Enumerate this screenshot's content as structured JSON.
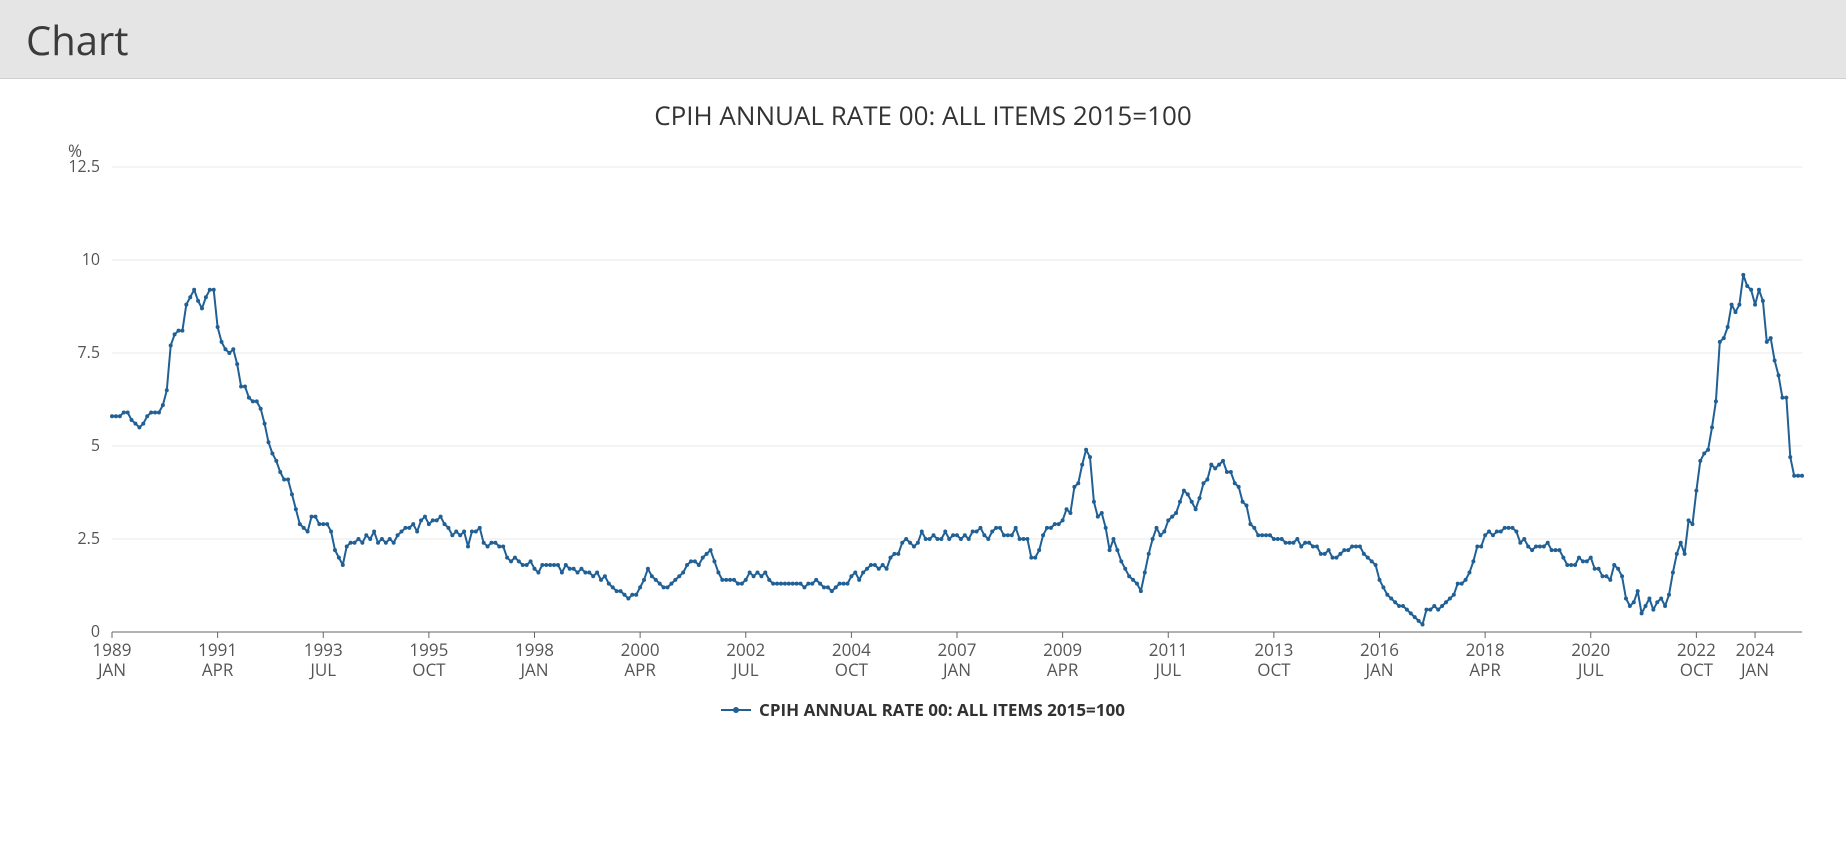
{
  "header": {
    "title": "Chart"
  },
  "chart": {
    "type": "line",
    "title": "CPIH ANNUAL RATE 00: ALL ITEMS 2015=100",
    "unit": "%",
    "series_name": "CPIH ANNUAL RATE 00: ALL ITEMS 2015=100",
    "line_color": "#206095",
    "line_width": 2,
    "marker_radius": 2,
    "background_color": "#ffffff",
    "grid_color": "#e8e8e8",
    "axis_color": "#666666",
    "label_color": "#555555",
    "title_fontsize": 26,
    "axis_fontsize": 17,
    "ylim": [
      0,
      12.5
    ],
    "yticks": [
      0,
      2.5,
      5,
      7.5,
      10,
      12.5
    ],
    "xticks": [
      {
        "t": 0,
        "year": "1989",
        "month": "JAN"
      },
      {
        "t": 27,
        "year": "1991",
        "month": "APR"
      },
      {
        "t": 54,
        "year": "1993",
        "month": "JUL"
      },
      {
        "t": 81,
        "year": "1995",
        "month": "OCT"
      },
      {
        "t": 108,
        "year": "1998",
        "month": "JAN"
      },
      {
        "t": 135,
        "year": "2000",
        "month": "APR"
      },
      {
        "t": 162,
        "year": "2002",
        "month": "JUL"
      },
      {
        "t": 189,
        "year": "2004",
        "month": "OCT"
      },
      {
        "t": 216,
        "year": "2007",
        "month": "JAN"
      },
      {
        "t": 243,
        "year": "2009",
        "month": "APR"
      },
      {
        "t": 270,
        "year": "2011",
        "month": "JUL"
      },
      {
        "t": 297,
        "year": "2013",
        "month": "OCT"
      },
      {
        "t": 324,
        "year": "2016",
        "month": "JAN"
      },
      {
        "t": 351,
        "year": "2018",
        "month": "APR"
      },
      {
        "t": 378,
        "year": "2020",
        "month": "JUL"
      },
      {
        "t": 405,
        "year": "2022",
        "month": "OCT"
      },
      {
        "t": 420,
        "year": "2024",
        "month": "JAN"
      }
    ],
    "values": [
      5.8,
      5.8,
      5.8,
      5.9,
      5.9,
      5.7,
      5.6,
      5.5,
      5.6,
      5.8,
      5.9,
      5.9,
      5.9,
      6.1,
      6.5,
      7.7,
      8.0,
      8.1,
      8.1,
      8.8,
      9.0,
      9.2,
      8.9,
      8.7,
      9.0,
      9.2,
      9.2,
      8.2,
      7.8,
      7.6,
      7.5,
      7.6,
      7.2,
      6.6,
      6.6,
      6.3,
      6.2,
      6.2,
      6.0,
      5.6,
      5.1,
      4.8,
      4.6,
      4.3,
      4.1,
      4.1,
      3.7,
      3.3,
      2.9,
      2.8,
      2.7,
      3.1,
      3.1,
      2.9,
      2.9,
      2.9,
      2.7,
      2.2,
      2.0,
      1.8,
      2.3,
      2.4,
      2.4,
      2.5,
      2.4,
      2.6,
      2.5,
      2.7,
      2.4,
      2.5,
      2.4,
      2.5,
      2.4,
      2.6,
      2.7,
      2.8,
      2.8,
      2.9,
      2.7,
      3.0,
      3.1,
      2.9,
      3.0,
      3.0,
      3.1,
      2.9,
      2.8,
      2.6,
      2.7,
      2.6,
      2.7,
      2.3,
      2.7,
      2.7,
      2.8,
      2.4,
      2.3,
      2.4,
      2.4,
      2.3,
      2.3,
      2.0,
      1.9,
      2.0,
      1.9,
      1.8,
      1.8,
      1.9,
      1.7,
      1.6,
      1.8,
      1.8,
      1.8,
      1.8,
      1.8,
      1.6,
      1.8,
      1.7,
      1.7,
      1.6,
      1.7,
      1.6,
      1.6,
      1.5,
      1.6,
      1.4,
      1.5,
      1.3,
      1.2,
      1.1,
      1.1,
      1.0,
      0.9,
      1.0,
      1.0,
      1.2,
      1.4,
      1.7,
      1.5,
      1.4,
      1.3,
      1.2,
      1.2,
      1.3,
      1.4,
      1.5,
      1.6,
      1.8,
      1.9,
      1.9,
      1.8,
      2.0,
      2.1,
      2.2,
      1.9,
      1.6,
      1.4,
      1.4,
      1.4,
      1.4,
      1.3,
      1.3,
      1.4,
      1.6,
      1.5,
      1.6,
      1.5,
      1.6,
      1.4,
      1.3,
      1.3,
      1.3,
      1.3,
      1.3,
      1.3,
      1.3,
      1.3,
      1.2,
      1.3,
      1.3,
      1.4,
      1.3,
      1.2,
      1.2,
      1.1,
      1.2,
      1.3,
      1.3,
      1.3,
      1.5,
      1.6,
      1.4,
      1.6,
      1.7,
      1.8,
      1.8,
      1.7,
      1.8,
      1.7,
      2.0,
      2.1,
      2.1,
      2.4,
      2.5,
      2.4,
      2.3,
      2.4,
      2.7,
      2.5,
      2.5,
      2.6,
      2.5,
      2.5,
      2.7,
      2.5,
      2.6,
      2.6,
      2.5,
      2.6,
      2.5,
      2.7,
      2.7,
      2.8,
      2.6,
      2.5,
      2.7,
      2.8,
      2.8,
      2.6,
      2.6,
      2.6,
      2.8,
      2.5,
      2.5,
      2.5,
      2.0,
      2.0,
      2.2,
      2.6,
      2.8,
      2.8,
      2.9,
      2.9,
      3.0,
      3.3,
      3.2,
      3.9,
      4.0,
      4.5,
      4.9,
      4.7,
      3.5,
      3.1,
      3.2,
      2.8,
      2.2,
      2.5,
      2.2,
      1.9,
      1.7,
      1.5,
      1.4,
      1.3,
      1.1,
      1.6,
      2.1,
      2.5,
      2.8,
      2.6,
      2.7,
      3.0,
      3.1,
      3.2,
      3.5,
      3.8,
      3.7,
      3.5,
      3.3,
      3.6,
      4.0,
      4.1,
      4.5,
      4.4,
      4.5,
      4.6,
      4.3,
      4.3,
      4.0,
      3.9,
      3.5,
      3.4,
      2.9,
      2.8,
      2.6,
      2.6,
      2.6,
      2.6,
      2.5,
      2.5,
      2.5,
      2.4,
      2.4,
      2.4,
      2.5,
      2.3,
      2.4,
      2.4,
      2.3,
      2.3,
      2.1,
      2.1,
      2.2,
      2.0,
      2.0,
      2.1,
      2.2,
      2.2,
      2.3,
      2.3,
      2.3,
      2.1,
      2.0,
      1.9,
      1.8,
      1.4,
      1.2,
      1.0,
      0.9,
      0.8,
      0.7,
      0.7,
      0.6,
      0.5,
      0.4,
      0.3,
      0.2,
      0.6,
      0.6,
      0.7,
      0.6,
      0.7,
      0.8,
      0.9,
      1.0,
      1.3,
      1.3,
      1.4,
      1.6,
      1.9,
      2.3,
      2.3,
      2.6,
      2.7,
      2.6,
      2.7,
      2.7,
      2.8,
      2.8,
      2.8,
      2.7,
      2.4,
      2.5,
      2.3,
      2.2,
      2.3,
      2.3,
      2.3,
      2.4,
      2.2,
      2.2,
      2.2,
      2.0,
      1.8,
      1.8,
      1.8,
      2.0,
      1.9,
      1.9,
      2.0,
      1.7,
      1.7,
      1.5,
      1.5,
      1.4,
      1.8,
      1.7,
      1.5,
      0.9,
      0.7,
      0.8,
      1.1,
      0.5,
      0.7,
      0.9,
      0.6,
      0.8,
      0.9,
      0.7,
      1.0,
      1.6,
      2.1,
      2.4,
      2.1,
      3.0,
      2.9,
      3.8,
      4.6,
      4.8,
      4.9,
      5.5,
      6.2,
      7.8,
      7.9,
      8.2,
      8.8,
      8.6,
      8.8,
      9.6,
      9.3,
      9.2,
      8.8,
      9.2,
      8.9,
      7.8,
      7.9,
      7.3,
      6.9,
      6.3,
      6.3,
      4.7,
      4.2,
      4.2,
      4.2
    ]
  }
}
